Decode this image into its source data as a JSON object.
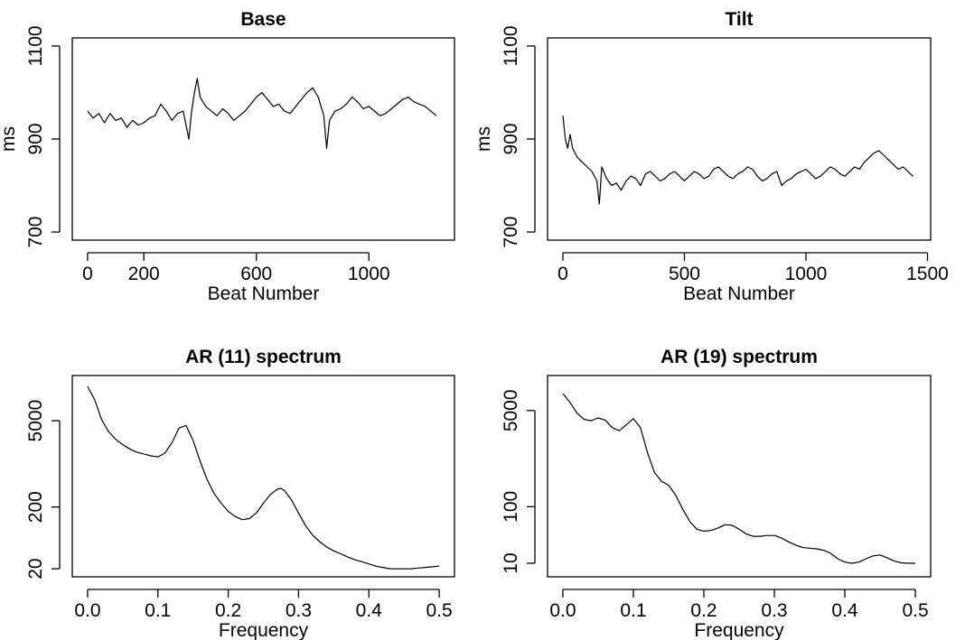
{
  "chart_data": [
    {
      "type": "line",
      "title": "Base",
      "xlabel": "Beat Number",
      "ylabel": "ms",
      "xlim": [
        0,
        1250
      ],
      "ylim": [
        700,
        1100
      ],
      "x_ticks": [
        0,
        200,
        600,
        1000
      ],
      "y_ticks": [
        700,
        900,
        1100
      ],
      "y_scale": "linear",
      "series": [
        {
          "x": [
            0,
            20,
            40,
            60,
            80,
            100,
            120,
            140,
            160,
            180,
            200,
            220,
            240,
            260,
            280,
            300,
            320,
            340,
            360,
            370,
            380,
            390,
            400,
            420,
            440,
            460,
            480,
            500,
            520,
            540,
            560,
            580,
            600,
            620,
            640,
            660,
            680,
            700,
            720,
            740,
            760,
            780,
            800,
            820,
            840,
            850,
            860,
            880,
            900,
            920,
            940,
            960,
            980,
            1000,
            1020,
            1040,
            1060,
            1080,
            1100,
            1120,
            1140,
            1160,
            1180,
            1200,
            1220,
            1240
          ],
          "y": [
            960,
            945,
            955,
            935,
            955,
            940,
            945,
            925,
            940,
            930,
            935,
            945,
            950,
            975,
            960,
            940,
            955,
            960,
            900,
            960,
            1000,
            1030,
            990,
            970,
            960,
            950,
            965,
            955,
            940,
            950,
            960,
            975,
            990,
            1000,
            985,
            970,
            975,
            960,
            955,
            970,
            985,
            1000,
            1010,
            990,
            950,
            880,
            940,
            960,
            965,
            975,
            990,
            980,
            965,
            970,
            960,
            950,
            955,
            965,
            975,
            985,
            990,
            980,
            975,
            970,
            960,
            950
          ]
        }
      ]
    },
    {
      "type": "line",
      "title": "Tilt",
      "xlabel": "Beat Number",
      "ylabel": "ms",
      "xlim": [
        0,
        1450
      ],
      "ylim": [
        700,
        1100
      ],
      "x_ticks": [
        0,
        500,
        1000,
        1500
      ],
      "y_ticks": [
        700,
        900,
        1100
      ],
      "y_scale": "linear",
      "series": [
        {
          "x": [
            0,
            10,
            20,
            30,
            40,
            60,
            80,
            100,
            120,
            140,
            150,
            160,
            180,
            200,
            220,
            240,
            260,
            280,
            300,
            320,
            340,
            360,
            380,
            400,
            420,
            440,
            460,
            480,
            500,
            520,
            540,
            560,
            580,
            600,
            620,
            640,
            660,
            680,
            700,
            720,
            740,
            760,
            780,
            800,
            820,
            840,
            860,
            880,
            900,
            920,
            940,
            960,
            980,
            1000,
            1020,
            1040,
            1060,
            1080,
            1100,
            1120,
            1140,
            1160,
            1180,
            1200,
            1220,
            1240,
            1260,
            1280,
            1300,
            1320,
            1340,
            1360,
            1380,
            1400,
            1420,
            1440
          ],
          "y": [
            950,
            900,
            880,
            910,
            880,
            860,
            850,
            840,
            830,
            810,
            760,
            840,
            815,
            800,
            805,
            790,
            810,
            820,
            815,
            800,
            825,
            830,
            820,
            810,
            815,
            825,
            830,
            820,
            810,
            820,
            830,
            825,
            815,
            820,
            835,
            840,
            830,
            820,
            815,
            825,
            830,
            840,
            835,
            820,
            810,
            815,
            825,
            830,
            800,
            810,
            815,
            825,
            830,
            835,
            825,
            815,
            820,
            830,
            840,
            835,
            825,
            820,
            830,
            840,
            835,
            850,
            860,
            870,
            875,
            865,
            855,
            845,
            835,
            840,
            830,
            820
          ]
        }
      ]
    },
    {
      "type": "line",
      "title": "AR (11) spectrum",
      "xlabel": "Frequency",
      "ylabel": "",
      "xlim": [
        0,
        0.5
      ],
      "ylim": [
        20,
        20000
      ],
      "x_ticks": [
        0.0,
        0.1,
        0.2,
        0.3,
        0.4,
        0.5
      ],
      "x_tick_labels": [
        "0.0",
        "0.1",
        "0.2",
        "0.3",
        "0.4",
        "0.5"
      ],
      "y_ticks": [
        20,
        200,
        5000
      ],
      "y_scale": "log",
      "series": [
        {
          "x": [
            0.0,
            0.01,
            0.02,
            0.03,
            0.04,
            0.05,
            0.06,
            0.07,
            0.08,
            0.09,
            0.1,
            0.11,
            0.12,
            0.13,
            0.14,
            0.15,
            0.16,
            0.17,
            0.18,
            0.19,
            0.2,
            0.21,
            0.22,
            0.23,
            0.24,
            0.25,
            0.26,
            0.27,
            0.275,
            0.28,
            0.29,
            0.3,
            0.31,
            0.32,
            0.33,
            0.34,
            0.35,
            0.36,
            0.37,
            0.38,
            0.39,
            0.4,
            0.41,
            0.42,
            0.43,
            0.44,
            0.45,
            0.46,
            0.47,
            0.48,
            0.49,
            0.5
          ],
          "y": [
            18000,
            11000,
            5200,
            3300,
            2500,
            2050,
            1750,
            1550,
            1450,
            1350,
            1300,
            1500,
            2200,
            3800,
            4200,
            2400,
            1100,
            560,
            330,
            230,
            170,
            140,
            125,
            130,
            160,
            230,
            320,
            390,
            400,
            370,
            260,
            160,
            100,
            70,
            55,
            45,
            39,
            35,
            31,
            28,
            26,
            24,
            22,
            21,
            20,
            20,
            20,
            20,
            20.5,
            21,
            21.5,
            22
          ]
        }
      ]
    },
    {
      "type": "line",
      "title": "AR (19) spectrum",
      "xlabel": "Frequency",
      "ylabel": "",
      "xlim": [
        0,
        0.5
      ],
      "ylim": [
        8,
        15000
      ],
      "x_ticks": [
        0.0,
        0.1,
        0.2,
        0.3,
        0.4,
        0.5
      ],
      "x_tick_labels": [
        "0.0",
        "0.1",
        "0.2",
        "0.3",
        "0.4",
        "0.5"
      ],
      "y_ticks": [
        10,
        100,
        5000
      ],
      "y_scale": "log",
      "series": [
        {
          "x": [
            0.0,
            0.01,
            0.02,
            0.03,
            0.04,
            0.05,
            0.06,
            0.07,
            0.08,
            0.09,
            0.1,
            0.11,
            0.12,
            0.13,
            0.14,
            0.15,
            0.16,
            0.17,
            0.18,
            0.19,
            0.2,
            0.21,
            0.22,
            0.23,
            0.24,
            0.25,
            0.26,
            0.27,
            0.28,
            0.29,
            0.3,
            0.31,
            0.32,
            0.33,
            0.34,
            0.35,
            0.36,
            0.37,
            0.38,
            0.39,
            0.4,
            0.41,
            0.42,
            0.43,
            0.44,
            0.45,
            0.46,
            0.47,
            0.48,
            0.49,
            0.5
          ],
          "y": [
            10000,
            7000,
            4500,
            3500,
            3300,
            3700,
            3400,
            2500,
            2200,
            2800,
            3600,
            2500,
            900,
            400,
            280,
            240,
            160,
            90,
            55,
            40,
            37,
            38,
            42,
            48,
            47,
            40,
            33,
            30,
            30,
            31,
            31,
            28,
            24,
            21,
            19,
            18.5,
            18,
            17,
            15,
            12,
            10.5,
            10,
            10.5,
            12,
            13.5,
            14,
            12.5,
            11,
            10.2,
            10,
            10
          ]
        }
      ]
    }
  ]
}
